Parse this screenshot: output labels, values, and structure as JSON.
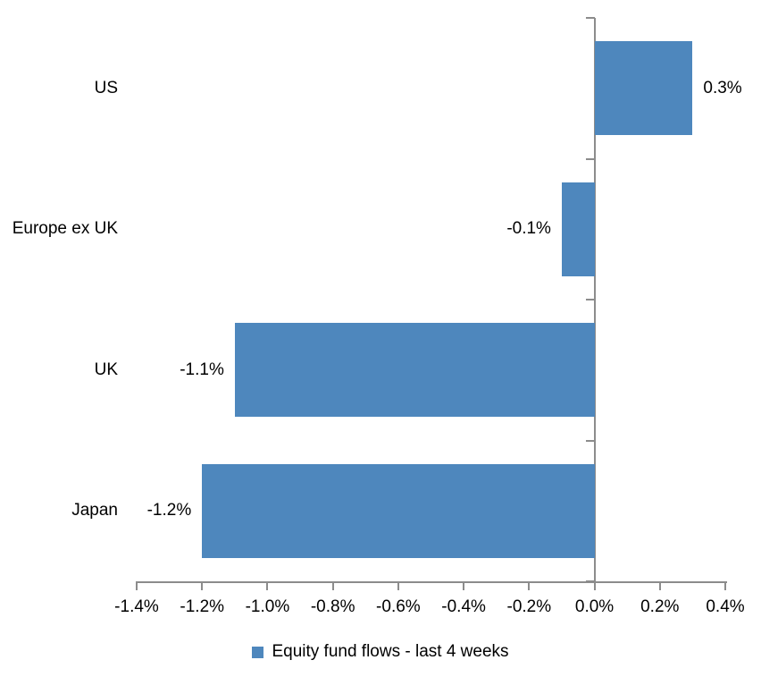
{
  "chart_data": {
    "type": "bar",
    "orientation": "horizontal",
    "title": "",
    "categories": [
      "US",
      "Europe ex UK",
      "UK",
      "Japan"
    ],
    "values": [
      0.3,
      -0.1,
      -1.1,
      -1.2
    ],
    "data_labels": [
      "0.3%",
      "-0.1%",
      "-1.1%",
      "-1.2%"
    ],
    "x_ticks": [
      -1.4,
      -1.2,
      -1.0,
      -0.8,
      -0.6,
      -0.4,
      -0.2,
      0.0,
      0.2,
      0.4
    ],
    "x_tick_labels": [
      "-1.4%",
      "-1.2%",
      "-1.0%",
      "-0.8%",
      "-0.6%",
      "-0.4%",
      "-0.2%",
      "0.0%",
      "0.2%",
      "0.4%"
    ],
    "xlim": [
      -1.4,
      0.4
    ],
    "grid": false,
    "legend_position": "bottom",
    "legend": {
      "label": "Equity fund flows - last 4 weeks"
    },
    "colors": {
      "bar": "#4E87BD",
      "axis": "#8C8C8C",
      "text": "#000000",
      "background": "#FFFFFF"
    }
  }
}
